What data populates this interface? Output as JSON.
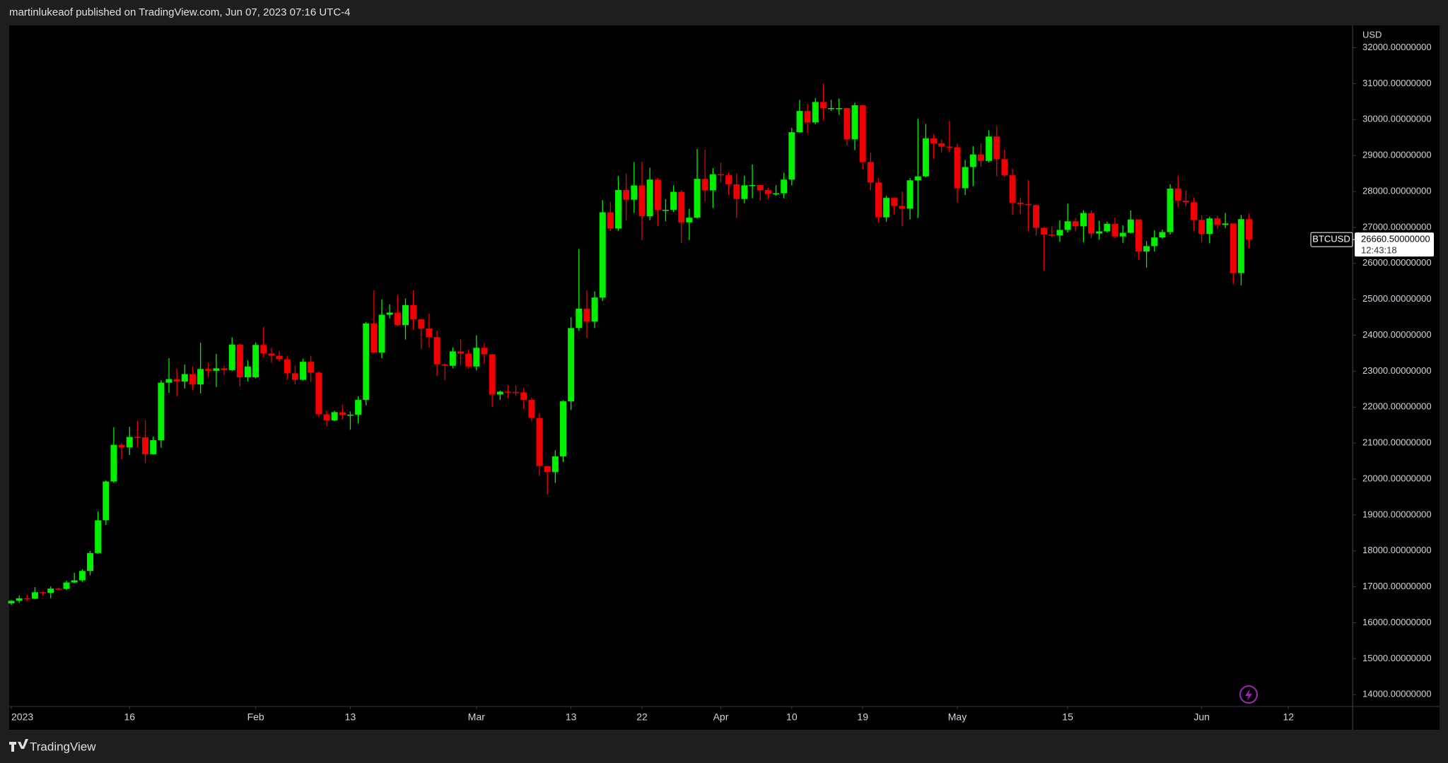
{
  "header": {
    "text": "martinlukeaof published on TradingView.com, Jun 07, 2023 07:16 UTC-4"
  },
  "footer": {
    "brand": "TradingView"
  },
  "chart_data": {
    "type": "candlestick",
    "y_axis_label": "USD",
    "grid": false,
    "ylim": [
      13670,
      32620
    ],
    "yticks": [
      {
        "value": 14000,
        "label": "14000.00000000"
      },
      {
        "value": 15000,
        "label": "15000.00000000"
      },
      {
        "value": 16000,
        "label": "16000.00000000"
      },
      {
        "value": 17000,
        "label": "17000.00000000"
      },
      {
        "value": 18000,
        "label": "18000.00000000"
      },
      {
        "value": 19000,
        "label": "19000.00000000"
      },
      {
        "value": 20000,
        "label": "20000.00000000"
      },
      {
        "value": 21000,
        "label": "21000.00000000"
      },
      {
        "value": 22000,
        "label": "22000.00000000"
      },
      {
        "value": 23000,
        "label": "23000.00000000"
      },
      {
        "value": 24000,
        "label": "24000.00000000"
      },
      {
        "value": 25000,
        "label": "25000.00000000"
      },
      {
        "value": 26000,
        "label": "26000.00000000"
      },
      {
        "value": 27000,
        "label": "27000.00000000"
      },
      {
        "value": 28000,
        "label": "28000.00000000"
      },
      {
        "value": 29000,
        "label": "29000.00000000"
      },
      {
        "value": 30000,
        "label": "30000.00000000"
      },
      {
        "value": 31000,
        "label": "31000.00000000"
      },
      {
        "value": 32000,
        "label": "32000.00000000"
      }
    ],
    "xticks": [
      {
        "value": "2023-01-01",
        "label": "2023"
      },
      {
        "value": "2023-01-16",
        "label": "16"
      },
      {
        "value": "2023-02-01",
        "label": "Feb"
      },
      {
        "value": "2023-02-13",
        "label": "13"
      },
      {
        "value": "2023-03-01",
        "label": "Mar"
      },
      {
        "value": "2023-03-13",
        "label": "13"
      },
      {
        "value": "2023-03-22",
        "label": "22"
      },
      {
        "value": "2023-04-01",
        "label": "Apr"
      },
      {
        "value": "2023-04-10",
        "label": "10"
      },
      {
        "value": "2023-04-19",
        "label": "19"
      },
      {
        "value": "2023-05-01",
        "label": "May"
      },
      {
        "value": "2023-05-15",
        "label": "15"
      },
      {
        "value": "2023-06-01",
        "label": "Jun"
      },
      {
        "value": "2023-06-12",
        "label": "12"
      }
    ],
    "last_price": {
      "value": 26660.5,
      "label": "26660.50000000"
    },
    "countdown": "12:43:18",
    "x": [
      "2023-01-01",
      "2023-01-02",
      "2023-01-03",
      "2023-01-04",
      "2023-01-05",
      "2023-01-06",
      "2023-01-07",
      "2023-01-08",
      "2023-01-09",
      "2023-01-10",
      "2023-01-11",
      "2023-01-12",
      "2023-01-13",
      "2023-01-14",
      "2023-01-15",
      "2023-01-16",
      "2023-01-17",
      "2023-01-18",
      "2023-01-19",
      "2023-01-20",
      "2023-01-21",
      "2023-01-22",
      "2023-01-23",
      "2023-01-24",
      "2023-01-25",
      "2023-01-26",
      "2023-01-27",
      "2023-01-28",
      "2023-01-29",
      "2023-01-30",
      "2023-01-31",
      "2023-02-01",
      "2023-02-02",
      "2023-02-03",
      "2023-02-04",
      "2023-02-05",
      "2023-02-06",
      "2023-02-07",
      "2023-02-08",
      "2023-02-09",
      "2023-02-10",
      "2023-02-11",
      "2023-02-12",
      "2023-02-13",
      "2023-02-14",
      "2023-02-15",
      "2023-02-16",
      "2023-02-17",
      "2023-02-18",
      "2023-02-19",
      "2023-02-20",
      "2023-02-21",
      "2023-02-22",
      "2023-02-23",
      "2023-02-24",
      "2023-02-25",
      "2023-02-26",
      "2023-02-27",
      "2023-02-28",
      "2023-03-01",
      "2023-03-02",
      "2023-03-03",
      "2023-03-04",
      "2023-03-05",
      "2023-03-06",
      "2023-03-07",
      "2023-03-08",
      "2023-03-09",
      "2023-03-10",
      "2023-03-11",
      "2023-03-12",
      "2023-03-13",
      "2023-03-14",
      "2023-03-15",
      "2023-03-16",
      "2023-03-17",
      "2023-03-18",
      "2023-03-19",
      "2023-03-20",
      "2023-03-21",
      "2023-03-22",
      "2023-03-23",
      "2023-03-24",
      "2023-03-25",
      "2023-03-26",
      "2023-03-27",
      "2023-03-28",
      "2023-03-29",
      "2023-03-30",
      "2023-03-31",
      "2023-04-01",
      "2023-04-02",
      "2023-04-03",
      "2023-04-04",
      "2023-04-05",
      "2023-04-06",
      "2023-04-07",
      "2023-04-08",
      "2023-04-09",
      "2023-04-10",
      "2023-04-11",
      "2023-04-12",
      "2023-04-13",
      "2023-04-14",
      "2023-04-15",
      "2023-04-16",
      "2023-04-17",
      "2023-04-18",
      "2023-04-19",
      "2023-04-20",
      "2023-04-21",
      "2023-04-22",
      "2023-04-23",
      "2023-04-24",
      "2023-04-25",
      "2023-04-26",
      "2023-04-27",
      "2023-04-28",
      "2023-04-29",
      "2023-04-30",
      "2023-05-01",
      "2023-05-02",
      "2023-05-03",
      "2023-05-04",
      "2023-05-05",
      "2023-05-06",
      "2023-05-07",
      "2023-05-08",
      "2023-05-09",
      "2023-05-10",
      "2023-05-11",
      "2023-05-12",
      "2023-05-13",
      "2023-05-14",
      "2023-05-15",
      "2023-05-16",
      "2023-05-17",
      "2023-05-18",
      "2023-05-19",
      "2023-05-20",
      "2023-05-21",
      "2023-05-22",
      "2023-05-23",
      "2023-05-24",
      "2023-05-25",
      "2023-05-26",
      "2023-05-27",
      "2023-05-28",
      "2023-05-29",
      "2023-05-30",
      "2023-05-31",
      "2023-06-01",
      "2023-06-02",
      "2023-06-03",
      "2023-06-04",
      "2023-06-05",
      "2023-06-06",
      "2023-06-07"
    ],
    "series": [
      {
        "name": "BTCUSD",
        "up_color": "#00f000",
        "down_color": "#f00000",
        "open": [
          16540,
          16610,
          16680,
          16670,
          16850,
          16830,
          16950,
          16940,
          17120,
          17180,
          17440,
          17940,
          18850,
          19930,
          20950,
          20880,
          21170,
          21160,
          20690,
          21080,
          22680,
          22780,
          22710,
          22920,
          22630,
          23060,
          23010,
          23080,
          23030,
          23740,
          22830,
          22830,
          23730,
          23490,
          23430,
          23330,
          22940,
          22760,
          23260,
          22960,
          21800,
          21630,
          21860,
          21780,
          21790,
          22200,
          24330,
          23520,
          24570,
          24630,
          24280,
          24840,
          24440,
          24190,
          23950,
          23190,
          23150,
          23550,
          23490,
          23130,
          23650,
          23470,
          22350,
          22430,
          22420,
          22410,
          22200,
          21700,
          20360,
          20190,
          20630,
          22160,
          24200,
          24740,
          24380,
          25050,
          27420,
          26970,
          28040,
          27770,
          28170,
          27310,
          28330,
          27490,
          27490,
          27990,
          27140,
          27270,
          28350,
          28030,
          28480,
          28450,
          28200,
          27790,
          28170,
          28180,
          28040,
          27930,
          27950,
          28330,
          29650,
          30240,
          29920,
          30490,
          30320,
          30320,
          30320,
          29450,
          30400,
          28820,
          28250,
          27280,
          27820,
          27600,
          27520,
          28310,
          28420,
          29480,
          29340,
          29250,
          29230,
          28090,
          28680,
          29030,
          28850,
          29530,
          28900,
          28450,
          27690,
          27650,
          27620,
          26990,
          26800,
          26780,
          26930,
          27170,
          27030,
          27400,
          26830,
          26890,
          27100,
          26750,
          26850,
          27220,
          26330,
          26480,
          26720,
          26870,
          28080,
          27740,
          27700,
          27210,
          26820,
          27250,
          27070,
          27110,
          25730,
          27230
        ],
        "high": [
          16630,
          16760,
          16780,
          16990,
          16880,
          17010,
          16980,
          17170,
          17390,
          17490,
          18000,
          19100,
          19960,
          21440,
          21000,
          21450,
          21620,
          21630,
          21180,
          22750,
          23360,
          23070,
          23180,
          23130,
          23790,
          23240,
          23480,
          23150,
          23940,
          23770,
          23300,
          23800,
          24230,
          23650,
          23560,
          23430,
          23150,
          23350,
          23430,
          23000,
          21900,
          21900,
          22070,
          21880,
          22300,
          24370,
          25250,
          25000,
          24860,
          25120,
          25020,
          25250,
          24470,
          24600,
          24130,
          23220,
          23660,
          23880,
          23600,
          24000,
          23780,
          23480,
          22460,
          22610,
          22600,
          22540,
          22260,
          21830,
          20360,
          20800,
          22190,
          24500,
          26400,
          25250,
          25220,
          27760,
          27710,
          28430,
          28500,
          28820,
          28830,
          28660,
          28380,
          27790,
          28170,
          28040,
          27520,
          29180,
          29160,
          28650,
          28800,
          28530,
          28500,
          28440,
          28750,
          28190,
          28100,
          28170,
          28520,
          29770,
          30550,
          30440,
          30600,
          31000,
          30550,
          30590,
          30330,
          30470,
          30420,
          29080,
          28370,
          27880,
          27820,
          28000,
          28370,
          30020,
          29880,
          29600,
          29450,
          29960,
          29330,
          28880,
          29260,
          29340,
          29700,
          29820,
          29160,
          28640,
          27830,
          28320,
          27640,
          27000,
          27030,
          27200,
          27660,
          27260,
          27480,
          27470,
          27180,
          27160,
          27270,
          27060,
          27470,
          27220,
          26620,
          26920,
          26940,
          28200,
          28440,
          28020,
          27830,
          27330,
          27300,
          27330,
          27400,
          27110,
          27350,
          27390
        ],
        "low": [
          16490,
          16550,
          16600,
          16650,
          16750,
          16680,
          16910,
          16910,
          17100,
          17140,
          17320,
          17920,
          18720,
          19890,
          20550,
          20670,
          20880,
          20440,
          20680,
          20870,
          22400,
          22300,
          22520,
          22470,
          22380,
          22840,
          22560,
          22890,
          23000,
          22580,
          22720,
          22800,
          23380,
          23240,
          23270,
          22760,
          22640,
          22740,
          22700,
          21720,
          21470,
          21610,
          21650,
          21370,
          21550,
          22050,
          23510,
          23360,
          24470,
          24250,
          23880,
          24150,
          23620,
          23650,
          22870,
          22750,
          23080,
          23160,
          23060,
          23020,
          23200,
          22010,
          22200,
          22250,
          22310,
          21950,
          21600,
          20090,
          19570,
          19890,
          20470,
          21920,
          24120,
          23930,
          24200,
          24950,
          26900,
          26900,
          27200,
          27400,
          26650,
          27200,
          27030,
          27170,
          27430,
          26570,
          26650,
          27250,
          27730,
          27540,
          28250,
          27900,
          27260,
          27670,
          27810,
          27740,
          27800,
          27880,
          27810,
          28170,
          29640,
          29620,
          29870,
          29980,
          30240,
          30130,
          29280,
          29150,
          28630,
          28030,
          27140,
          27160,
          27360,
          27030,
          27220,
          27260,
          28390,
          28910,
          29090,
          29100,
          27700,
          27900,
          28150,
          28690,
          28810,
          28420,
          28400,
          27340,
          27370,
          26900,
          26770,
          25810,
          26720,
          26600,
          26860,
          26900,
          26590,
          26700,
          26660,
          26850,
          26700,
          26570,
          26830,
          26090,
          25880,
          26330,
          26690,
          26800,
          27560,
          27580,
          26900,
          26600,
          26560,
          26960,
          26980,
          25420,
          25390,
          26420
        ],
        "close": [
          16610,
          16680,
          16670,
          16850,
          16830,
          16950,
          16940,
          17120,
          17180,
          17440,
          17940,
          18850,
          19930,
          20950,
          20880,
          21170,
          21160,
          20690,
          21080,
          22680,
          22780,
          22710,
          22920,
          22630,
          23060,
          23010,
          23080,
          23030,
          23740,
          22830,
          23130,
          23730,
          23490,
          23430,
          23330,
          22940,
          22760,
          23260,
          22960,
          21800,
          21630,
          21860,
          21780,
          21790,
          22200,
          24330,
          23520,
          24570,
          24630,
          24280,
          24840,
          24440,
          24190,
          23950,
          23190,
          23150,
          23550,
          23490,
          23130,
          23650,
          23470,
          22350,
          22430,
          22420,
          22410,
          22200,
          21700,
          20360,
          20190,
          20630,
          22160,
          24200,
          24740,
          24380,
          25050,
          27420,
          26970,
          28040,
          27770,
          28170,
          27310,
          28330,
          27490,
          27490,
          27990,
          27140,
          27270,
          28350,
          28030,
          28480,
          28450,
          28200,
          27790,
          28170,
          28180,
          28040,
          27930,
          27950,
          28330,
          29650,
          30240,
          29920,
          30490,
          30320,
          30320,
          30320,
          29450,
          30400,
          28820,
          28250,
          27280,
          27820,
          27600,
          27520,
          28310,
          28420,
          29480,
          29340,
          29250,
          29230,
          28090,
          28680,
          29030,
          28850,
          29530,
          28900,
          28450,
          27690,
          27650,
          27620,
          26990,
          26800,
          26780,
          26930,
          27170,
          27030,
          27400,
          26830,
          26890,
          27100,
          26750,
          26850,
          27220,
          26330,
          26480,
          26720,
          26870,
          28080,
          27740,
          27700,
          27210,
          26820,
          27250,
          27070,
          27110,
          25730,
          27230,
          26660
        ]
      }
    ]
  }
}
